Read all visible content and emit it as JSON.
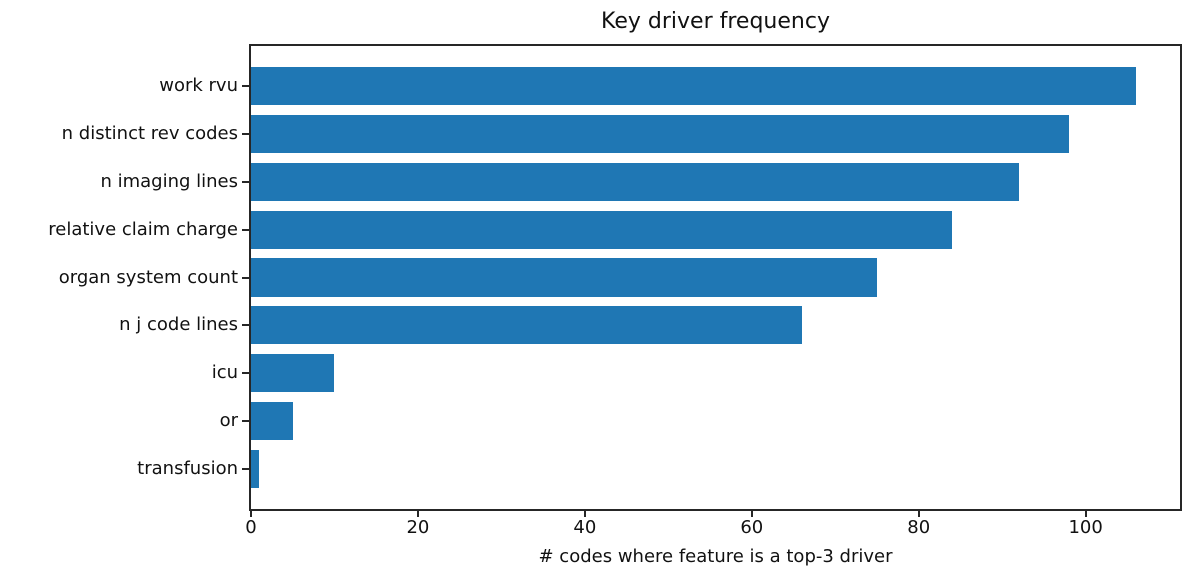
{
  "chart_data": {
    "type": "bar",
    "orientation": "horizontal",
    "title": "Key driver frequency",
    "xlabel": "# codes where feature is a top-3 driver",
    "ylabel": "",
    "categories": [
      "work rvu",
      "n distinct rev codes",
      "n imaging lines",
      "relative claim charge",
      "organ system count",
      "n j code lines",
      "icu",
      "or",
      "transfusion"
    ],
    "values": [
      106,
      98,
      92,
      84,
      75,
      66,
      10,
      5,
      1
    ],
    "xticks": [
      0,
      20,
      40,
      60,
      80,
      100
    ],
    "xlim": [
      0,
      111.3
    ],
    "bar_color": "#1f77b4",
    "spine_color": "#262626",
    "grid": false,
    "legend": null
  }
}
